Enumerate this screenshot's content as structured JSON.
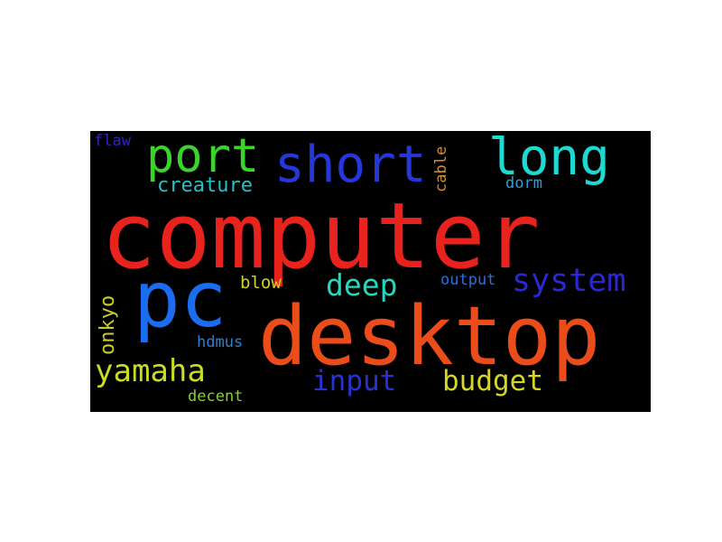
{
  "word_cloud": {
    "words": [
      {
        "id": "computer",
        "text": "computer",
        "color": "#e8221c"
      },
      {
        "id": "desktop",
        "text": "desktop",
        "color": "#ea4d1a"
      },
      {
        "id": "pc",
        "text": "pc",
        "color": "#1a6cf0"
      },
      {
        "id": "short",
        "text": "short",
        "color": "#2437d8"
      },
      {
        "id": "long",
        "text": "long",
        "color": "#1ed8d2"
      },
      {
        "id": "port",
        "text": "port",
        "color": "#3ad42a"
      },
      {
        "id": "yamaha",
        "text": "yamaha",
        "color": "#c9dc25"
      },
      {
        "id": "system",
        "text": "system",
        "color": "#2a28d6"
      },
      {
        "id": "deep",
        "text": "deep",
        "color": "#22d8bd"
      },
      {
        "id": "budget",
        "text": "budget",
        "color": "#d5d62c"
      },
      {
        "id": "input",
        "text": "input",
        "color": "#2a31d2"
      },
      {
        "id": "creature",
        "text": "creature",
        "color": "#26c0c9"
      },
      {
        "id": "onkyo",
        "text": "onkyo",
        "color": "#c7cc28"
      },
      {
        "id": "blow",
        "text": "blow",
        "color": "#d1d12a"
      },
      {
        "id": "output",
        "text": "output",
        "color": "#2b6fd9"
      },
      {
        "id": "hdmus",
        "text": "hdmus",
        "color": "#2b7fd4"
      },
      {
        "id": "decent",
        "text": "decent",
        "color": "#84d22b"
      },
      {
        "id": "cable",
        "text": "cable",
        "color": "#d98c26"
      },
      {
        "id": "dorm",
        "text": "dorm",
        "color": "#2aa1d6"
      },
      {
        "id": "flaw",
        "text": "flaw",
        "color": "#3424b9"
      }
    ]
  }
}
